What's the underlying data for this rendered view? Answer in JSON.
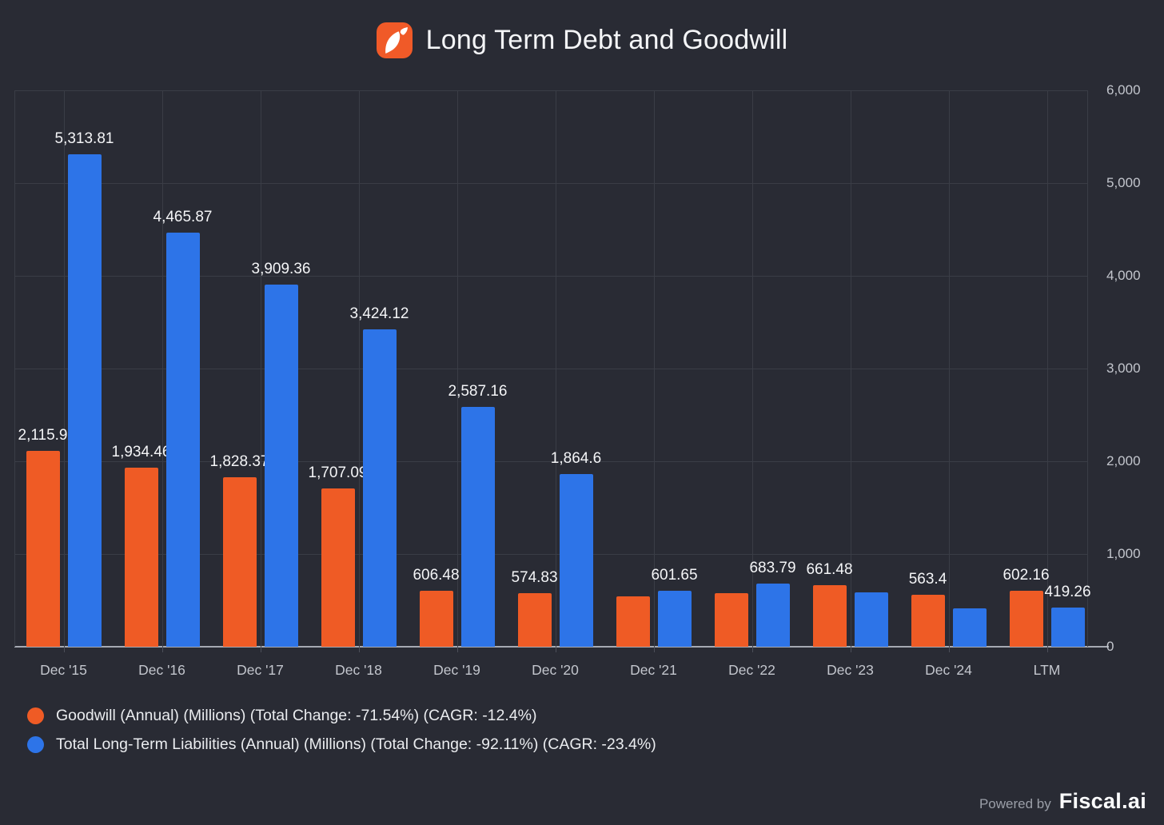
{
  "header": {
    "title": "Long Term Debt and Goodwill",
    "logo_icon": "fiscal-leaf-icon"
  },
  "colors": {
    "background": "#292B34",
    "grid": "#3A3D46",
    "axis": "#A6AAB3",
    "goodwill_orange": "#EF5B25",
    "liabilities_blue": "#2D74E8",
    "logo_bg": "#F05A28",
    "text_bright": "#F4F5F7",
    "text_tick": "#C3C6CD"
  },
  "chart_data": {
    "type": "bar",
    "title": "Long Term Debt and Goodwill",
    "categories": [
      "Dec '15",
      "Dec '16",
      "Dec '17",
      "Dec '18",
      "Dec '19",
      "Dec '20",
      "Dec '21",
      "Dec '22",
      "Dec '23",
      "Dec '24",
      "LTM"
    ],
    "series": [
      {
        "key": "goodwill",
        "name": "Goodwill (Annual) (Millions) (Total Change: -71.54%) (CAGR: -12.4%)",
        "color": "#EF5B25",
        "values": [
          2115.9,
          1934.46,
          1828.37,
          1707.09,
          606.48,
          574.83,
          540,
          580,
          661.48,
          563.4,
          602.16
        ],
        "labels": [
          "2,115.9",
          "1,934.46",
          "1,828.37",
          "1,707.09",
          "606.48",
          "574.83",
          null,
          null,
          "661.48",
          "563.4",
          "602.16"
        ]
      },
      {
        "key": "total-long-term-liabilities",
        "name": "Total Long-Term Liabilities (Annual) (Millions) (Total Change: -92.11%) (CAGR: -23.4%)",
        "color": "#2D74E8",
        "values": [
          5313.81,
          4465.87,
          3909.36,
          3424.12,
          2587.16,
          1864.6,
          601.65,
          683.79,
          585,
          410,
          419.26
        ],
        "labels": [
          "5,313.81",
          "4,465.87",
          "3,909.36",
          "3,424.12",
          "2,587.16",
          "1,864.6",
          "601.65",
          "683.79",
          null,
          null,
          "419.26"
        ]
      }
    ],
    "ylim": [
      0,
      6000
    ],
    "yticks": [
      0,
      1000,
      2000,
      3000,
      4000,
      5000,
      6000
    ],
    "ytick_labels": [
      "0",
      "1,000",
      "2,000",
      "3,000",
      "4,000",
      "5,000",
      "6,000"
    ],
    "grid": true,
    "y_axis_side": "right",
    "legend_position": "bottom-left"
  },
  "footer": {
    "powered_by": "Powered by",
    "brand": "Fiscal.ai"
  }
}
